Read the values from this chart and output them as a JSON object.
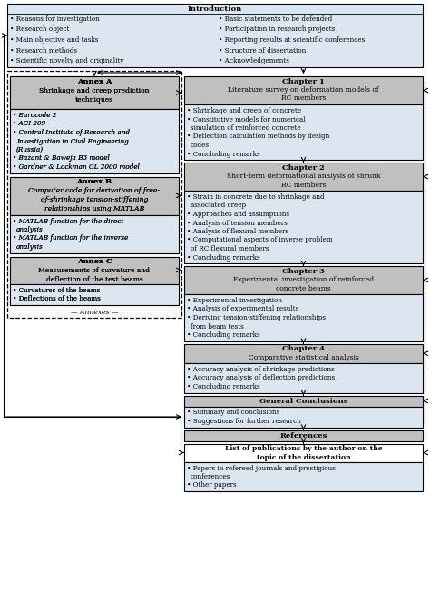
{
  "bg_color": "#ffffff",
  "fill_intro": "#dce6f1",
  "fill_chapter_header": "#c0c0c0",
  "fill_chapter_body": "#dce6f1",
  "fill_annex_header": "#c0c0c0",
  "fill_annex_body": "#dce6f1",
  "fill_annex_outer": "#f0f0f0",
  "fill_gc": "#c0c0c0",
  "fill_ref": "#c0c0c0",
  "fill_pub_header": "#ffffff",
  "intro_left_bullets": [
    "Reasons for investigation",
    "Research object",
    "Main objective and tasks",
    "Research methods",
    "Scientific novelty and originality"
  ],
  "intro_right_bullets": [
    "Basic statements to be defended",
    "Participation in research projects",
    "Reporting results at scientific conferences",
    "Structure of dissertation",
    "Acknowledgements"
  ],
  "annex_a_title": "Annex A",
  "annex_a_subtitle": "Shrinkage and creep prediction\ntechniques",
  "annex_a_bullets": [
    "Eurocode 2",
    "ACI 209",
    "Central Institute of Research and\nInvestigation in Civil Engineering\n(Russia)",
    "Bazant & Baweja B3 model",
    "Gardner & Lockman GL 2000 model"
  ],
  "annex_b_title": "Annex B",
  "annex_b_subtitle": "Computer code for derivation of free-\nof-shrinkage tension-stiffening\nrelationships using MATLAB",
  "annex_b_bullets_1": "MATLAB function for the direct\nanalysis",
  "annex_b_bullets_2": "MATLAB function for the inverse\nanalysis",
  "annex_c_title": "Annex C",
  "annex_c_subtitle": "Measurements of curvature and\ndeflection of the test beams",
  "annex_c_bullets": [
    "Curvatures of the beams",
    "Deflections of the beams"
  ],
  "annexes_label": "Annexes",
  "ch1_title": "Chapter 1",
  "ch1_subtitle": "Literature survey on deformation models of\nRC members",
  "ch1_bullets": [
    "Shrinkage and creep of concrete",
    "Constitutive models for numerical\nsimulation of reinforced concrete",
    "Deflection calculation methods by design\ncodes",
    "Concluding remarks"
  ],
  "ch2_title": "Chapter 2",
  "ch2_subtitle": "Short-term deformational analysis of shrunk\nRC members",
  "ch2_bullets": [
    "Strain in concrete due to shrinkage and\nassociated creep",
    "Approaches and assumptions",
    "Analysis of tension members",
    "Analysis of flexural members",
    "Computational aspects of inverse problem\nof RC flexural members",
    "Concluding remarks"
  ],
  "ch3_title": "Chapter 3",
  "ch3_subtitle": "Experimental investigation of reinforced\nconcrete beams",
  "ch3_bullets": [
    "Experimental investigation",
    "Analysis of experimental results",
    "Deriving tension-stiffening relationships\nfrom beam tests",
    "Concluding remarks"
  ],
  "ch4_title": "Chapter 4",
  "ch4_subtitle": "Comparative statistical analysis",
  "ch4_bullets": [
    "Accuracy analysis of shrinkage predictions",
    "Accuracy analysis of deflection predictions",
    "Concluding remarks"
  ],
  "conclusions_title": "General Conclusions",
  "conclusions_bullets": [
    "Summary and conclusions",
    "Suggestions for further research"
  ],
  "references_title": "References",
  "publications_title": "List of publications by the author on the\ntopic of the dissertation",
  "publications_bullets": [
    "Papers in refereed journals and prestigious\nconferences",
    "Other papers"
  ]
}
